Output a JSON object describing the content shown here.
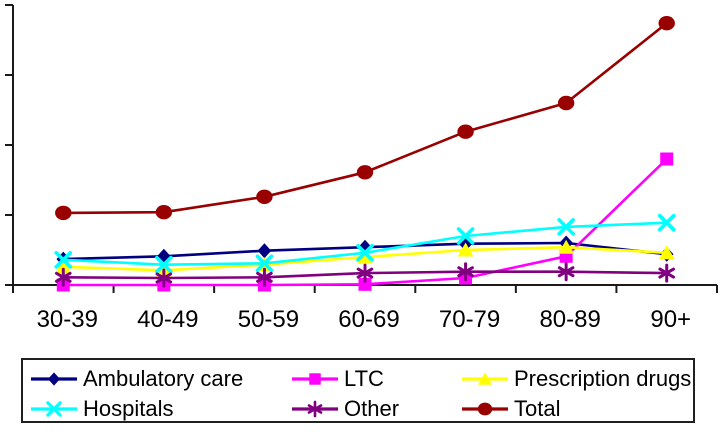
{
  "chart_data": {
    "type": "line",
    "title": "",
    "xlabel": "",
    "ylabel": "",
    "categories": [
      "30-39",
      "40-49",
      "50-59",
      "60-69",
      "70-79",
      "80-89",
      "90+"
    ],
    "series": [
      {
        "name": "Ambulatory care",
        "color": "#000080",
        "marker": "diamond",
        "values": [
          0.37,
          0.41,
          0.49,
          0.54,
          0.59,
          0.6,
          0.44
        ]
      },
      {
        "name": "LTC",
        "color": "#FF00FF",
        "marker": "square",
        "values": [
          0.0,
          0.0,
          0.0,
          0.01,
          0.1,
          0.41,
          1.8
        ]
      },
      {
        "name": "Prescription drugs",
        "color": "#FFFF00",
        "marker": "triangle",
        "values": [
          0.26,
          0.21,
          0.29,
          0.4,
          0.5,
          0.54,
          0.46
        ]
      },
      {
        "name": "Hospitals",
        "color": "#00FFFF",
        "marker": "x",
        "values": [
          0.36,
          0.29,
          0.31,
          0.46,
          0.7,
          0.83,
          0.89
        ]
      },
      {
        "name": "Other",
        "color": "#800080",
        "marker": "asterisk",
        "values": [
          0.11,
          0.1,
          0.11,
          0.17,
          0.19,
          0.19,
          0.17
        ]
      },
      {
        "name": "Total",
        "color": "#990000",
        "marker": "circle",
        "values": [
          1.03,
          1.04,
          1.26,
          1.61,
          2.19,
          2.6,
          3.74
        ]
      }
    ],
    "ylim": [
      0,
      4
    ],
    "y_axis": {
      "tick_count": 5,
      "labels_visible": false
    },
    "grid": false,
    "legend_position": "bottom",
    "legend_layout": [
      [
        "Ambulatory care",
        "LTC",
        "Prescription drugs"
      ],
      [
        "Hospitals",
        "Other",
        "Total"
      ]
    ],
    "axis_color": "#1a1a1a"
  }
}
